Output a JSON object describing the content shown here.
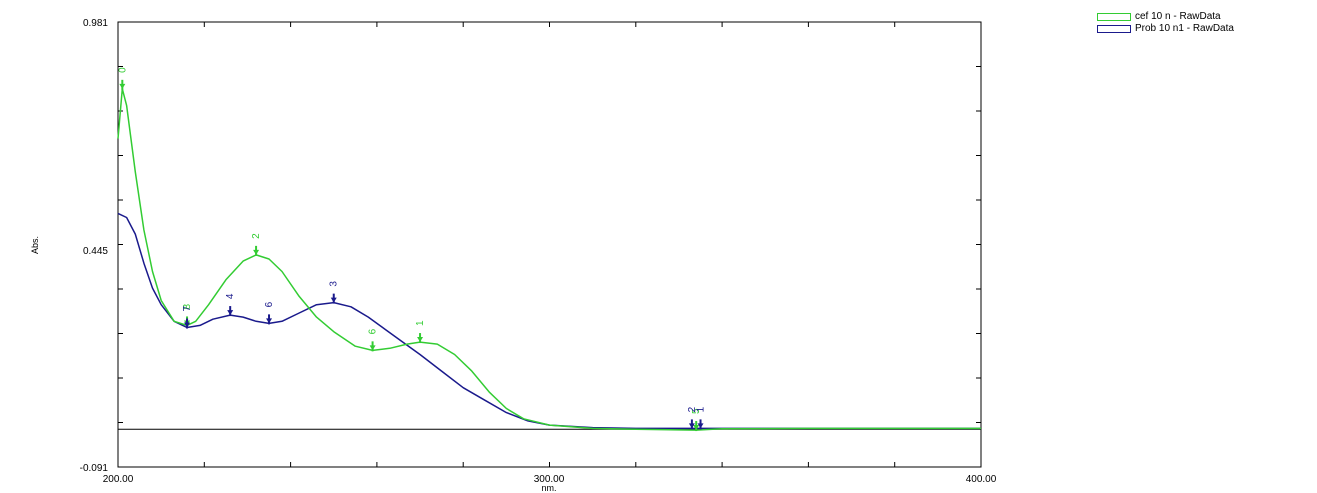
{
  "chart_data": {
    "type": "line",
    "xlabel": "nm.",
    "ylabel": "Abs.",
    "xlim": [
      200,
      400
    ],
    "ylim": [
      -0.091,
      0.981
    ],
    "x_tick_labels": [
      "200.00",
      "300.00",
      "400.00"
    ],
    "y_tick_labels": [
      "0.981",
      "0.445",
      "-0.091"
    ],
    "baseline": 0,
    "series": [
      {
        "name": "cef 10 n - RawData",
        "color": "#33cc33",
        "points": [
          [
            200,
            0.7
          ],
          [
            201,
            0.82
          ],
          [
            202,
            0.78
          ],
          [
            204,
            0.62
          ],
          [
            206,
            0.48
          ],
          [
            208,
            0.38
          ],
          [
            210,
            0.31
          ],
          [
            213,
            0.26
          ],
          [
            216,
            0.25
          ],
          [
            218,
            0.26
          ],
          [
            221,
            0.3
          ],
          [
            225,
            0.36
          ],
          [
            229,
            0.405
          ],
          [
            232,
            0.42
          ],
          [
            235,
            0.41
          ],
          [
            238,
            0.38
          ],
          [
            242,
            0.32
          ],
          [
            246,
            0.27
          ],
          [
            250,
            0.235
          ],
          [
            255,
            0.2
          ],
          [
            259,
            0.19
          ],
          [
            263,
            0.195
          ],
          [
            267,
            0.205
          ],
          [
            270,
            0.21
          ],
          [
            274,
            0.205
          ],
          [
            278,
            0.18
          ],
          [
            282,
            0.14
          ],
          [
            286,
            0.09
          ],
          [
            290,
            0.05
          ],
          [
            294,
            0.025
          ],
          [
            300,
            0.01
          ],
          [
            310,
            0.002
          ],
          [
            320,
            0.0
          ],
          [
            334,
            -0.002
          ],
          [
            340,
            0.001
          ],
          [
            360,
            0.002
          ],
          [
            380,
            0.002
          ],
          [
            400,
            0.002
          ]
        ],
        "peaks": [
          {
            "label": "0",
            "x": 201,
            "y": 0.82
          },
          {
            "label": "2",
            "x": 232,
            "y": 0.42
          },
          {
            "label": "1",
            "x": 270,
            "y": 0.21
          },
          {
            "label": "8",
            "x": 216,
            "y": 0.25
          },
          {
            "label": "6",
            "x": 259,
            "y": 0.19
          },
          {
            "label": "5",
            "x": 334,
            "y": -0.002
          }
        ]
      },
      {
        "name": "Prob 10 n1 - RawData",
        "color": "#1a1a8c",
        "points": [
          [
            200,
            0.52
          ],
          [
            202,
            0.51
          ],
          [
            204,
            0.47
          ],
          [
            206,
            0.4
          ],
          [
            208,
            0.34
          ],
          [
            210,
            0.3
          ],
          [
            213,
            0.26
          ],
          [
            216,
            0.245
          ],
          [
            219,
            0.25
          ],
          [
            222,
            0.265
          ],
          [
            226,
            0.275
          ],
          [
            229,
            0.27
          ],
          [
            232,
            0.26
          ],
          [
            235,
            0.255
          ],
          [
            238,
            0.26
          ],
          [
            242,
            0.28
          ],
          [
            246,
            0.3
          ],
          [
            250,
            0.305
          ],
          [
            254,
            0.295
          ],
          [
            258,
            0.27
          ],
          [
            262,
            0.24
          ],
          [
            266,
            0.21
          ],
          [
            270,
            0.18
          ],
          [
            275,
            0.14
          ],
          [
            280,
            0.1
          ],
          [
            285,
            0.07
          ],
          [
            290,
            0.04
          ],
          [
            295,
            0.02
          ],
          [
            300,
            0.01
          ],
          [
            310,
            0.004
          ],
          [
            320,
            0.002
          ],
          [
            333,
            0.002
          ],
          [
            340,
            0.002
          ],
          [
            360,
            0.002
          ],
          [
            380,
            0.002
          ],
          [
            400,
            0.002
          ]
        ],
        "peaks": [
          {
            "label": "3",
            "x": 250,
            "y": 0.305
          },
          {
            "label": "4",
            "x": 226,
            "y": 0.275
          },
          {
            "label": "7",
            "x": 216,
            "y": 0.245
          },
          {
            "label": "6",
            "x": 235,
            "y": 0.255
          },
          {
            "label": "2",
            "x": 333,
            "y": 0.002
          },
          {
            "label": "1",
            "x": 335,
            "y": 0.002
          }
        ]
      }
    ],
    "legend_position": "top-right",
    "grid": false
  }
}
